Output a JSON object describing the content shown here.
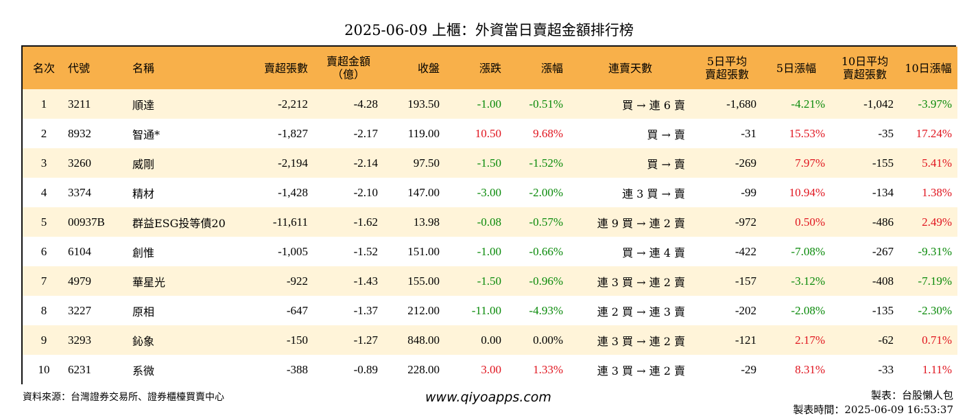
{
  "title": "2025-06-09 上櫃：外資當日賣超金額排行榜",
  "colors": {
    "header_bg": "#f8b04a",
    "row_alt_bg": "#fff4d9",
    "up": "#e0141e",
    "down": "#0a8a0a",
    "neutral": "#000000"
  },
  "columns": [
    {
      "label": "名次"
    },
    {
      "label": "代號"
    },
    {
      "label": "名稱"
    },
    {
      "label": "賣超張數"
    },
    {
      "label": "賣超金額",
      "sub": "（億）"
    },
    {
      "label": "收盤"
    },
    {
      "label": "漲跌"
    },
    {
      "label": "漲幅"
    },
    {
      "label": "連賣天數"
    },
    {
      "label": "5日平均",
      "sub": "賣超張數"
    },
    {
      "label": "5日漲幅"
    },
    {
      "label": "10日平均",
      "sub": "賣超張數"
    },
    {
      "label": "10日漲幅"
    }
  ],
  "rows": [
    {
      "rank": "1",
      "code": "3211",
      "name": "順達",
      "sell_lots": "-2,212",
      "sell_amount": "-4.28",
      "close": "193.50",
      "change": "-1.00",
      "change_dir": "down",
      "pct": "-0.51%",
      "pct_dir": "down",
      "days": "買 → 連 6 賣",
      "avg5": "-1,680",
      "pct5": "-4.21%",
      "pct5_dir": "down",
      "avg10": "-1,042",
      "pct10": "-3.97%",
      "pct10_dir": "down"
    },
    {
      "rank": "2",
      "code": "8932",
      "name": "智通*",
      "sell_lots": "-1,827",
      "sell_amount": "-2.17",
      "close": "119.00",
      "change": "10.50",
      "change_dir": "up",
      "pct": "9.68%",
      "pct_dir": "up",
      "days": "買 → 賣",
      "avg5": "-31",
      "pct5": "15.53%",
      "pct5_dir": "up",
      "avg10": "-35",
      "pct10": "17.24%",
      "pct10_dir": "up"
    },
    {
      "rank": "3",
      "code": "3260",
      "name": "威剛",
      "sell_lots": "-2,194",
      "sell_amount": "-2.14",
      "close": "97.50",
      "change": "-1.50",
      "change_dir": "down",
      "pct": "-1.52%",
      "pct_dir": "down",
      "days": "買 → 賣",
      "avg5": "-269",
      "pct5": "7.97%",
      "pct5_dir": "up",
      "avg10": "-155",
      "pct10": "5.41%",
      "pct10_dir": "up"
    },
    {
      "rank": "4",
      "code": "3374",
      "name": "精材",
      "sell_lots": "-1,428",
      "sell_amount": "-2.10",
      "close": "147.00",
      "change": "-3.00",
      "change_dir": "down",
      "pct": "-2.00%",
      "pct_dir": "down",
      "days": "連 3 買 → 賣",
      "avg5": "-99",
      "pct5": "10.94%",
      "pct5_dir": "up",
      "avg10": "-134",
      "pct10": "1.38%",
      "pct10_dir": "up"
    },
    {
      "rank": "5",
      "code": "00937B",
      "name": "群益ESG投等債20",
      "sell_lots": "-11,611",
      "sell_amount": "-1.62",
      "close": "13.98",
      "change": "-0.08",
      "change_dir": "down",
      "pct": "-0.57%",
      "pct_dir": "down",
      "days": "連 9 買 → 連 2 賣",
      "avg5": "-972",
      "pct5": "0.50%",
      "pct5_dir": "up",
      "avg10": "-486",
      "pct10": "2.49%",
      "pct10_dir": "up"
    },
    {
      "rank": "6",
      "code": "6104",
      "name": "創惟",
      "sell_lots": "-1,005",
      "sell_amount": "-1.52",
      "close": "151.00",
      "change": "-1.00",
      "change_dir": "down",
      "pct": "-0.66%",
      "pct_dir": "down",
      "days": "買 → 連 4 賣",
      "avg5": "-422",
      "pct5": "-7.08%",
      "pct5_dir": "down",
      "avg10": "-267",
      "pct10": "-9.31%",
      "pct10_dir": "down"
    },
    {
      "rank": "7",
      "code": "4979",
      "name": "華星光",
      "sell_lots": "-922",
      "sell_amount": "-1.43",
      "close": "155.00",
      "change": "-1.50",
      "change_dir": "down",
      "pct": "-0.96%",
      "pct_dir": "down",
      "days": "連 3 買 → 連 2 賣",
      "avg5": "-157",
      "pct5": "-3.12%",
      "pct5_dir": "down",
      "avg10": "-408",
      "pct10": "-7.19%",
      "pct10_dir": "down"
    },
    {
      "rank": "8",
      "code": "3227",
      "name": "原相",
      "sell_lots": "-647",
      "sell_amount": "-1.37",
      "close": "212.00",
      "change": "-11.00",
      "change_dir": "down",
      "pct": "-4.93%",
      "pct_dir": "down",
      "days": "連 2 買 → 連 3 賣",
      "avg5": "-202",
      "pct5": "-2.08%",
      "pct5_dir": "down",
      "avg10": "-135",
      "pct10": "-2.30%",
      "pct10_dir": "down"
    },
    {
      "rank": "9",
      "code": "3293",
      "name": "鈊象",
      "sell_lots": "-150",
      "sell_amount": "-1.27",
      "close": "848.00",
      "change": "0.00",
      "change_dir": "flat",
      "pct": "0.00%",
      "pct_dir": "flat",
      "days": "連 3 買 → 連 2 賣",
      "avg5": "-121",
      "pct5": "2.17%",
      "pct5_dir": "up",
      "avg10": "-62",
      "pct10": "0.71%",
      "pct10_dir": "up"
    },
    {
      "rank": "10",
      "code": "6231",
      "name": "系微",
      "sell_lots": "-388",
      "sell_amount": "-0.89",
      "close": "228.00",
      "change": "3.00",
      "change_dir": "up",
      "pct": "1.33%",
      "pct_dir": "up",
      "days": "連 3 買 → 連 2 賣",
      "avg5": "-29",
      "pct5": "8.31%",
      "pct5_dir": "up",
      "avg10": "-33",
      "pct10": "1.11%",
      "pct10_dir": "up"
    }
  ],
  "footer": {
    "source": "資料來源：台灣證券交易所、證券櫃檯買賣中心",
    "website": "www.qiyoapps.com",
    "maker": "製表：台股懶人包",
    "made_time": "製表時間：2025-06-09 16:53:37"
  }
}
